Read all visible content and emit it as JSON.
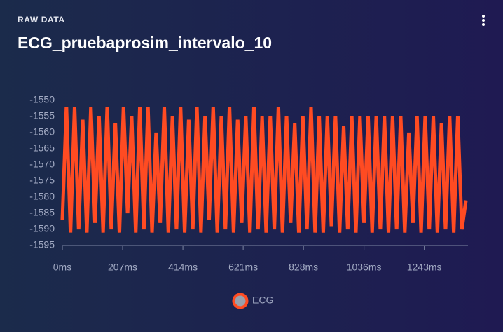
{
  "header": {
    "label": "RAW DATA"
  },
  "chart_data": {
    "type": "line",
    "title": "ECG_pruebaprosim_intervalo_10",
    "x": [
      0,
      14,
      28,
      42,
      56,
      70,
      84,
      98,
      112,
      126,
      140,
      154,
      168,
      182,
      196,
      210,
      224,
      238,
      252,
      266,
      280,
      294,
      308,
      322,
      336,
      350,
      364,
      378,
      392,
      406,
      420,
      434,
      448,
      462,
      476,
      490,
      504,
      518,
      532,
      546,
      560,
      574,
      588,
      602,
      616,
      630,
      644,
      658,
      672,
      686,
      700,
      714,
      728,
      742,
      756,
      770,
      784,
      798,
      812,
      826,
      840,
      854,
      868,
      882,
      896,
      910,
      924,
      938,
      952,
      966,
      980,
      994,
      1008,
      1022,
      1036,
      1050,
      1064,
      1078,
      1092,
      1106,
      1120,
      1134,
      1148,
      1162,
      1176,
      1190,
      1204,
      1218,
      1232,
      1246,
      1260,
      1274,
      1288,
      1302,
      1316,
      1330,
      1344,
      1358,
      1372,
      1386
    ],
    "series": [
      {
        "name": "ECG",
        "color": "#ff4b22",
        "values": [
          -1587,
          -1552,
          -1591,
          -1552,
          -1590,
          -1556,
          -1591,
          -1552,
          -1588,
          -1555,
          -1591,
          -1552,
          -1590,
          -1557,
          -1591,
          -1552,
          -1585,
          -1555,
          -1591,
          -1552,
          -1590,
          -1552,
          -1591,
          -1560,
          -1588,
          -1552,
          -1591,
          -1555,
          -1590,
          -1552,
          -1591,
          -1556,
          -1590,
          -1552,
          -1591,
          -1555,
          -1587,
          -1552,
          -1591,
          -1555,
          -1590,
          -1552,
          -1591,
          -1556,
          -1588,
          -1555,
          -1591,
          -1552,
          -1590,
          -1555,
          -1591,
          -1555,
          -1590,
          -1552,
          -1591,
          -1555,
          -1588,
          -1557,
          -1591,
          -1555,
          -1590,
          -1552,
          -1591,
          -1555,
          -1591,
          -1555,
          -1589,
          -1555,
          -1591,
          -1558,
          -1590,
          -1555,
          -1591,
          -1555,
          -1588,
          -1555,
          -1591,
          -1555,
          -1590,
          -1555,
          -1591,
          -1555,
          -1590,
          -1555,
          -1591,
          -1560,
          -1588,
          -1555,
          -1591,
          -1555,
          -1590,
          -1555,
          -1591,
          -1557,
          -1590,
          -1555,
          -1591,
          -1555,
          -1590,
          -1581
        ]
      }
    ],
    "xlim": [
      0,
      1393
    ],
    "xticks": [
      {
        "value": 0,
        "label": "0ms"
      },
      {
        "value": 207,
        "label": "207ms"
      },
      {
        "value": 414,
        "label": "414ms"
      },
      {
        "value": 621,
        "label": "621ms"
      },
      {
        "value": 828,
        "label": "828ms"
      },
      {
        "value": 1036,
        "label": "1036ms"
      },
      {
        "value": 1243,
        "label": "1243ms"
      }
    ],
    "ylim": [
      -1595,
      -1550
    ],
    "yticks": [
      -1595,
      -1590,
      -1585,
      -1580,
      -1575,
      -1570,
      -1565,
      -1560,
      -1555,
      -1550
    ],
    "grid": false
  }
}
